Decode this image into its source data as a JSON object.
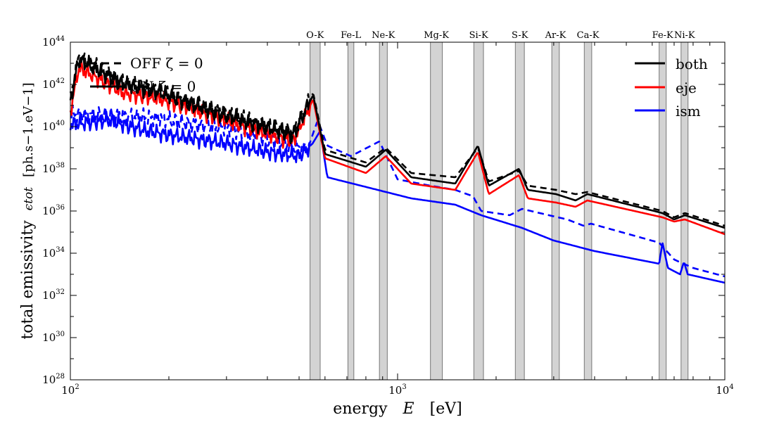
{
  "chart_data": {
    "type": "line",
    "xscale": "log",
    "yscale": "log",
    "xlim": [
      100,
      10000
    ],
    "ylim_exp": [
      28,
      44
    ],
    "x_ticks": [
      {
        "base": "10",
        "exp": "2"
      },
      {
        "base": "10",
        "exp": "3"
      },
      {
        "base": "10",
        "exp": "4"
      }
    ],
    "y_ticks": [
      {
        "base": "10",
        "exp": "28"
      },
      {
        "base": "10",
        "exp": "30"
      },
      {
        "base": "10",
        "exp": "32"
      },
      {
        "base": "10",
        "exp": "34"
      },
      {
        "base": "10",
        "exp": "36"
      },
      {
        "base": "10",
        "exp": "38"
      },
      {
        "base": "10",
        "exp": "40"
      },
      {
        "base": "10",
        "exp": "42"
      },
      {
        "base": "10",
        "exp": "44"
      }
    ],
    "xlabel": {
      "text": "energy",
      "symbol": "E",
      "unit": "[eV]"
    },
    "ylabel": {
      "text": "total emissivity",
      "symbol": "ϵtot",
      "unit": "[ph.s−1.eV−1]"
    },
    "bands": [
      {
        "label": "O-K",
        "range": [
          540,
          580
        ]
      },
      {
        "label": "Fe-L",
        "range": [
          705,
          735
        ]
      },
      {
        "label": "Ne-K",
        "range": [
          880,
          930
        ]
      },
      {
        "label": "Mg-K",
        "range": [
          1260,
          1370
        ]
      },
      {
        "label": "Si-K",
        "range": [
          1710,
          1830
        ]
      },
      {
        "label": "S-K",
        "range": [
          2290,
          2440
        ]
      },
      {
        "label": "Ar-K",
        "range": [
          2960,
          3120
        ]
      },
      {
        "label": "Ca-K",
        "range": [
          3720,
          3920
        ]
      },
      {
        "label": "Fe-K",
        "range": [
          6300,
          6620
        ]
      },
      {
        "label": "Ni-K",
        "range": [
          7350,
          7720
        ]
      }
    ],
    "legend_left": [
      {
        "label": "OFF ζ = 0",
        "style": "dashed",
        "color": "#000000"
      },
      {
        "label": "ON ζ = 0",
        "style": "solid",
        "color": "#000000"
      }
    ],
    "legend_right": [
      {
        "label": "both",
        "color": "#000000"
      },
      {
        "label": "eje",
        "color": "#ff0000"
      },
      {
        "label": "ism",
        "color": "#0000ff"
      }
    ],
    "lines": [
      {
        "id": 1,
        "x_keys": [
          100,
          145,
          190,
          235,
          290,
          360,
          450,
          530,
          570,
          610,
          720,
          880,
          1000,
          1260,
          1500,
          1700,
          1800,
          2200,
          2400,
          2900,
          3300,
          3700,
          3900,
          6300,
          7000,
          8000,
          10000
        ],
        "y_exp": [
          40.6,
          40.5,
          40.4,
          40.1,
          40.0,
          39.6,
          39.2,
          38.9,
          40.3,
          39.1,
          38.6,
          39.3,
          37.5,
          37.2,
          37.0,
          36.7,
          36.0,
          35.8,
          36.1,
          35.8,
          35.6,
          35.3,
          35.4,
          34.5,
          33.7,
          33.3,
          32.9
        ],
        "color": "#0000ff",
        "style": "dashed"
      },
      {
        "id": 2,
        "x_keys": [
          100,
          130,
          170,
          200,
          300,
          400,
          500,
          550,
          580,
          610,
          1100,
          1500,
          1800,
          2400,
          3000,
          4000,
          6300,
          6450,
          6700,
          7300,
          7500,
          7700,
          10000
        ],
        "y_exp": [
          40.1,
          40.3,
          39.8,
          39.6,
          39.2,
          38.8,
          38.6,
          39.2,
          39.8,
          37.6,
          36.6,
          36.3,
          35.8,
          35.2,
          34.6,
          34.1,
          33.5,
          34.5,
          33.3,
          33.0,
          33.6,
          33.0,
          32.6
        ],
        "color": "#0000ff",
        "style": "solid"
      },
      {
        "id": 3,
        "x_keys": [
          100,
          106,
          145,
          190,
          260,
          370,
          480,
          552,
          600,
          800,
          920,
          1100,
          1500,
          1760,
          1900,
          2350,
          2500,
          3050,
          3500,
          3800,
          6450,
          7000,
          7550,
          10000
        ],
        "y_exp": [
          40.7,
          42.8,
          41.6,
          41.3,
          40.6,
          39.8,
          39.3,
          41.3,
          38.5,
          37.8,
          38.6,
          37.3,
          37.0,
          38.8,
          36.8,
          37.7,
          36.6,
          36.4,
          36.2,
          36.5,
          35.7,
          35.5,
          35.6,
          34.9
        ],
        "color": "#ff0000",
        "style": "solid"
      },
      {
        "id": 4,
        "x_keys": [
          100,
          106,
          145,
          190,
          260,
          370,
          480,
          552,
          600,
          800,
          920,
          1100,
          1500,
          1760,
          1900,
          2350,
          2500,
          3050,
          3500,
          3800,
          6450,
          7000,
          7550,
          10000
        ],
        "y_exp": [
          41.2,
          43.2,
          42.0,
          41.6,
          40.8,
          40.1,
          39.6,
          41.5,
          38.7,
          38.1,
          38.9,
          37.6,
          37.3,
          39.1,
          37.2,
          38.0,
          37.0,
          36.8,
          36.5,
          36.8,
          35.9,
          35.6,
          35.8,
          35.2
        ],
        "color": "#000000",
        "style": "solid"
      },
      {
        "id": 5,
        "x_keys": [
          100,
          106,
          145,
          190,
          260,
          370,
          480,
          552,
          600,
          800,
          920,
          1100,
          1500,
          1760,
          1900,
          2350,
          2500,
          3050,
          3500,
          3800,
          6450,
          7000,
          7550,
          10000
        ],
        "y_exp": [
          41.3,
          43.3,
          42.1,
          41.7,
          40.9,
          40.2,
          39.7,
          41.6,
          38.9,
          38.3,
          39.0,
          37.8,
          37.6,
          39.0,
          37.4,
          37.9,
          37.2,
          37.0,
          36.8,
          36.9,
          36.0,
          35.7,
          35.9,
          35.3
        ],
        "color": "#000000",
        "style": "dashed"
      }
    ]
  }
}
